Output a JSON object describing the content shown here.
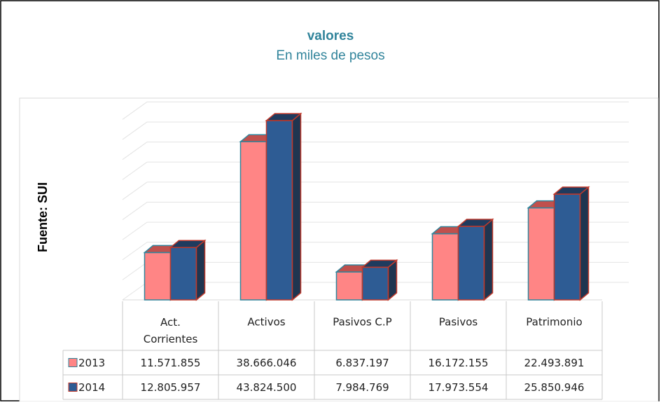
{
  "chart_data": {
    "type": "bar",
    "title": "valores",
    "subtitle": "En miles de pesos",
    "y_label": "Fuente: SUI",
    "categories": [
      "Act. Corrientes",
      "Activos",
      "Pasivos C.P",
      "Pasivos",
      "Patrimonio"
    ],
    "series": [
      {
        "name": "2013",
        "color": "#ff8585",
        "values": [
          11571855,
          38666046,
          6837197,
          16172155,
          22493891
        ],
        "value_labels": [
          "11.571.855",
          "38.666.046",
          "6.837.197",
          "16.172.155",
          "22.493.891"
        ]
      },
      {
        "name": "2014",
        "color": "#2e5c94",
        "values": [
          12805957,
          43824500,
          7984769,
          17973554,
          25850946
        ],
        "value_labels": [
          "12.805.957",
          "43.824.500",
          "7.984.769",
          "17.973.554",
          "25.850.946"
        ]
      }
    ],
    "ylim": [
      0,
      50000000
    ],
    "grid": true
  }
}
